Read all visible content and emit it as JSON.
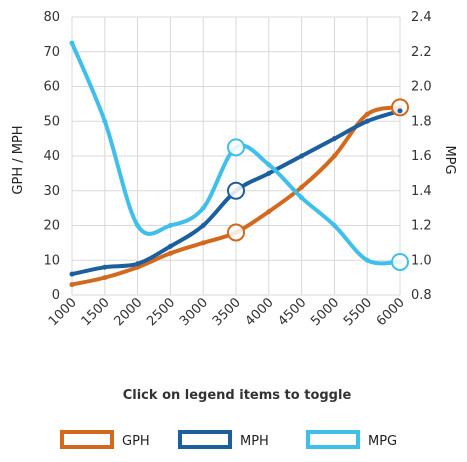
{
  "chart_data": {
    "type": "line",
    "x": [
      1000,
      1500,
      2000,
      2500,
      3000,
      3500,
      4000,
      4500,
      5000,
      5500,
      6000
    ],
    "x_tick_labels": [
      "1000",
      "1500",
      "2000",
      "2500",
      "3000",
      "3500",
      "4000",
      "4500",
      "5000",
      "5500",
      "6000"
    ],
    "ylabel": "GPH / MPH",
    "ylim": [
      0,
      80
    ],
    "y_ticks": [
      0,
      10,
      20,
      30,
      40,
      50,
      60,
      70,
      80
    ],
    "y2label": "MPG",
    "y2lim": [
      0.8,
      2.4
    ],
    "y2_ticks": [
      "0.8",
      "1.0",
      "1.2",
      "1.4",
      "1.6",
      "1.8",
      "2.0",
      "2.2",
      "2.4"
    ],
    "grid": true,
    "legend_position": "bottom",
    "caption": "Click on legend items to toggle",
    "series": [
      {
        "name": "GPH",
        "axis": "left",
        "color": "#d2691e",
        "values": [
          3,
          5,
          8,
          12,
          15,
          18,
          24,
          31,
          40,
          52,
          54
        ],
        "highlight_index": [
          5,
          10
        ]
      },
      {
        "name": "MPH",
        "axis": "left",
        "color": "#1c5f9e",
        "values": [
          6,
          8,
          9,
          14,
          20,
          30,
          35,
          40,
          45,
          50,
          53
        ],
        "highlight_index": [
          5
        ]
      },
      {
        "name": "MPG",
        "axis": "right",
        "color": "#3fbfea",
        "values": [
          2.25,
          1.8,
          1.2,
          1.2,
          1.3,
          1.65,
          1.55,
          1.36,
          1.2,
          1.0,
          0.99
        ],
        "highlight_index": [
          5,
          10
        ]
      }
    ]
  }
}
